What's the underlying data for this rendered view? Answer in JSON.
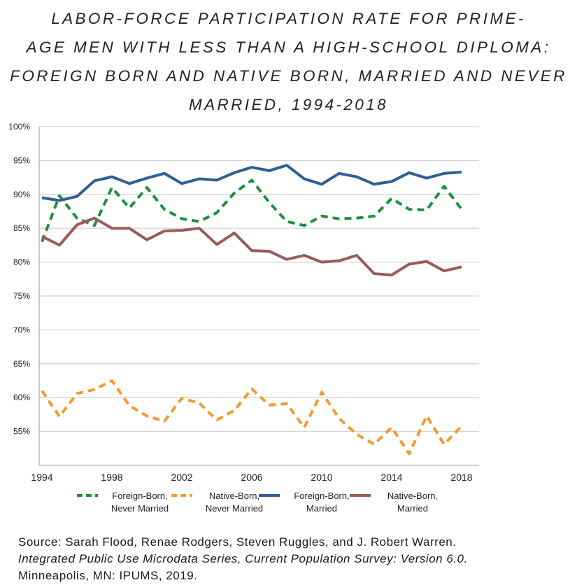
{
  "title_lines": [
    "LABOR-FORCE PARTICIPATION RATE FOR PRIME-",
    "AGE MEN WITH LESS THAN A HIGH-SCHOOL DIPLOMA:",
    "FOREIGN BORN AND NATIVE BORN, MARRIED AND NEVER",
    "MARRIED, 1994-2018"
  ],
  "source": {
    "line1": "Source: Sarah Flood, Renae Rodgers, Steven Ruggles, and J. Robert Warren.",
    "line2": "Integrated Public Use Microdata Series, Current Population Survey: Version 6.0.",
    "line3": "Minneapolis, MN: IPUMS, 2019."
  },
  "chart_data": {
    "type": "line",
    "title": "LABOR-FORCE PARTICIPATION RATE FOR PRIME-AGE MEN WITH LESS THAN A HIGH-SCHOOL DIPLOMA: FOREIGN BORN AND NATIVE BORN, MARRIED AND NEVER MARRIED, 1994-2018",
    "xlabel": "",
    "ylabel": "",
    "x": [
      1994,
      1995,
      1996,
      1997,
      1998,
      1999,
      2000,
      2001,
      2002,
      2003,
      2004,
      2005,
      2006,
      2007,
      2008,
      2009,
      2010,
      2011,
      2012,
      2013,
      2014,
      2015,
      2016,
      2017,
      2018
    ],
    "x_ticks": [
      "1994",
      "1998",
      "2002",
      "2006",
      "2010",
      "2014",
      "2018"
    ],
    "x_tick_values": [
      1994,
      1998,
      2002,
      2006,
      2010,
      2014,
      2018
    ],
    "y_ticks": [
      "55%",
      "60%",
      "65%",
      "70%",
      "75%",
      "80%",
      "85%",
      "90%",
      "95%",
      "100%"
    ],
    "y_tick_values": [
      55,
      60,
      65,
      70,
      75,
      80,
      85,
      90,
      95,
      100
    ],
    "ylim": [
      50,
      100
    ],
    "grid": "horizontal",
    "legend_position": "bottom",
    "series": [
      {
        "name_lines": [
          "Foreign-Born,",
          "Never Married"
        ],
        "color": "#1f8f3f",
        "style": "dashed",
        "values": [
          83.0,
          89.8,
          86.5,
          85.4,
          91.0,
          88.0,
          91.0,
          87.8,
          86.4,
          86.0,
          87.3,
          90.2,
          92.1,
          88.8,
          86.0,
          85.4,
          86.8,
          86.4,
          86.5,
          86.8,
          89.4,
          87.8,
          87.7,
          91.2,
          87.8
        ]
      },
      {
        "name_lines": [
          "Native-Born,",
          "Never Married"
        ],
        "color": "#f39a2f",
        "style": "dashed",
        "values": [
          61.0,
          57.2,
          60.6,
          61.2,
          62.5,
          58.8,
          57.3,
          56.5,
          59.9,
          59.2,
          56.7,
          58.1,
          61.3,
          58.9,
          59.1,
          55.6,
          60.8,
          56.9,
          54.6,
          53.1,
          55.6,
          51.7,
          57.3,
          53.1,
          55.8
        ]
      },
      {
        "name_lines": [
          "Foreign-Born,",
          "Married"
        ],
        "color": "#2f5f98",
        "style": "solid",
        "values": [
          89.5,
          89.1,
          89.7,
          92.0,
          92.6,
          91.6,
          92.4,
          93.1,
          91.6,
          92.3,
          92.1,
          93.2,
          94.0,
          93.5,
          94.3,
          92.3,
          91.5,
          93.1,
          92.6,
          91.5,
          91.9,
          93.2,
          92.4,
          93.1,
          93.3
        ]
      },
      {
        "name_lines": [
          "Native-Born,",
          "Married"
        ],
        "color": "#9a5b5b",
        "style": "solid",
        "values": [
          83.8,
          82.5,
          85.5,
          86.5,
          85.0,
          85.0,
          83.3,
          84.6,
          84.7,
          85.0,
          82.6,
          84.3,
          81.7,
          81.6,
          80.4,
          81.0,
          80.0,
          80.2,
          81.0,
          78.3,
          78.1,
          79.7,
          80.1,
          78.7,
          79.3
        ]
      }
    ]
  }
}
